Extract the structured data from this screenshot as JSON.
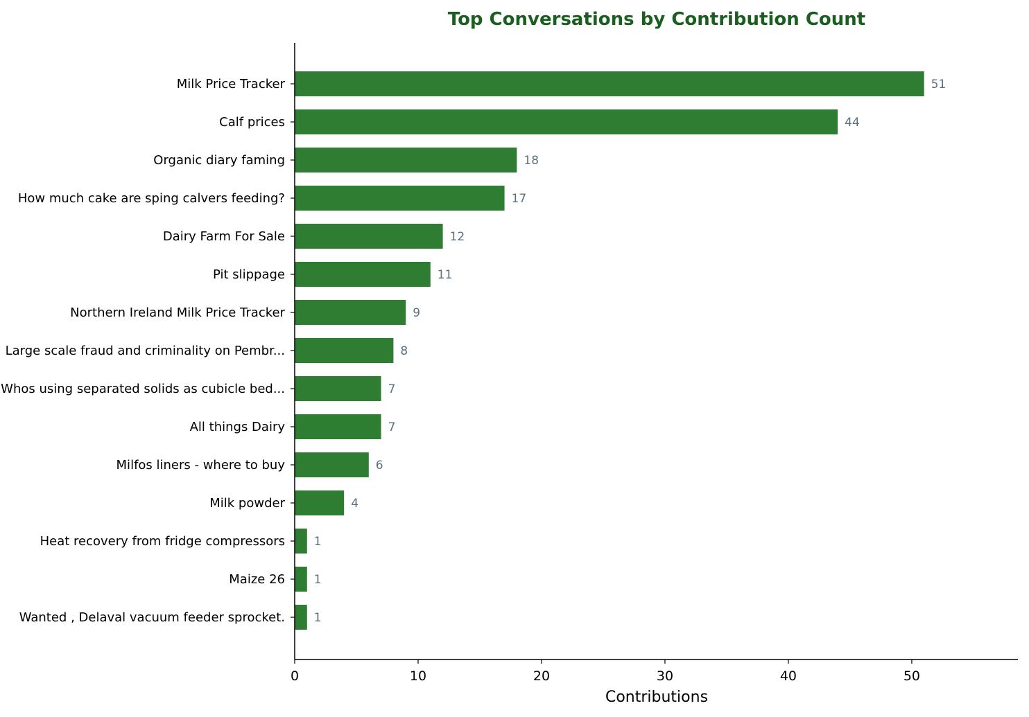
{
  "colors": {
    "bar": "#2e7d32",
    "title": "#1b5e20",
    "value_label": "#5a6f80",
    "axis": "#000000"
  },
  "chart_data": {
    "type": "bar",
    "orientation": "horizontal",
    "title": "Top Conversations by Contribution Count",
    "xlabel": "Contributions",
    "ylabel": "",
    "xlim": [
      0,
      58.6
    ],
    "xticks": [
      0,
      10,
      20,
      30,
      40,
      50
    ],
    "grid": false,
    "legend": "none",
    "categories": [
      "Milk Price Tracker",
      "Calf prices",
      "Organic  diary faming",
      "How much cake are sping calvers feeding?",
      "Dairy Farm For Sale",
      "Pit slippage",
      "Northern Ireland Milk Price Tracker",
      "Large scale fraud and criminality on Pembr...",
      "Whos using separated solids as cubicle bed...",
      "All things Dairy",
      "Milfos liners - where to buy",
      "Milk powder",
      "Heat recovery from fridge compressors",
      "Maize 26",
      "Wanted , Delaval vacuum feeder sprocket."
    ],
    "values": [
      51,
      44,
      18,
      17,
      12,
      11,
      9,
      8,
      7,
      7,
      6,
      4,
      1,
      1,
      1
    ]
  }
}
